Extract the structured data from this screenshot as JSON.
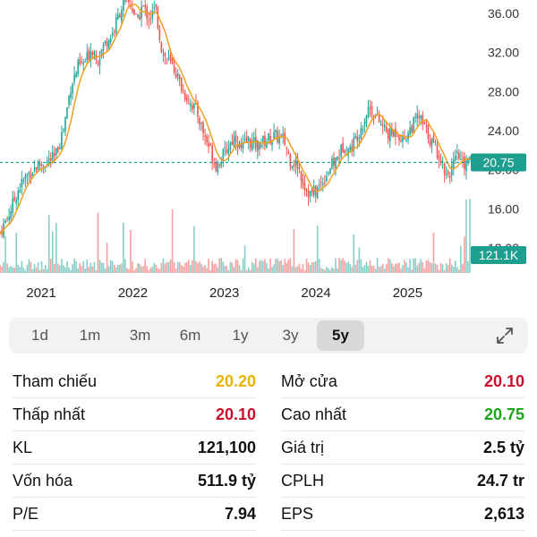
{
  "colors": {
    "up": "#26a69a",
    "down": "#ef5350",
    "ma": "#f0a020",
    "reference": "#e8b400",
    "red_value": "#c8102e",
    "green_value": "#1fa31f",
    "badge": "#1e9e8e"
  },
  "chart_data": {
    "type": "line",
    "price_ticks": [
      "36.00",
      "32.00",
      "28.00",
      "24.00",
      "20.00",
      "16.00",
      "12.00"
    ],
    "x_labels": [
      "2021",
      "2022",
      "2023",
      "2024",
      "2025"
    ],
    "ylim": [
      12,
      38
    ],
    "last_price": 20.75,
    "last_price_label": "20.75",
    "volume_label": "121.1K",
    "close_series": [
      {
        "t": 2020.55,
        "v": 13.6
      },
      {
        "t": 2020.65,
        "v": 15.5
      },
      {
        "t": 2020.75,
        "v": 18.0
      },
      {
        "t": 2020.85,
        "v": 19.5
      },
      {
        "t": 2020.95,
        "v": 20.4
      },
      {
        "t": 2021.05,
        "v": 20.8
      },
      {
        "t": 2021.15,
        "v": 21.2
      },
      {
        "t": 2021.25,
        "v": 24.5
      },
      {
        "t": 2021.32,
        "v": 28.5
      },
      {
        "t": 2021.4,
        "v": 30.5
      },
      {
        "t": 2021.48,
        "v": 31.0
      },
      {
        "t": 2021.55,
        "v": 32.5
      },
      {
        "t": 2021.62,
        "v": 31.5
      },
      {
        "t": 2021.7,
        "v": 33.0
      },
      {
        "t": 2021.78,
        "v": 34.0
      },
      {
        "t": 2021.85,
        "v": 36.0
      },
      {
        "t": 2021.92,
        "v": 37.5
      },
      {
        "t": 2022.0,
        "v": 36.5
      },
      {
        "t": 2022.05,
        "v": 35.0
      },
      {
        "t": 2022.1,
        "v": 36.8
      },
      {
        "t": 2022.18,
        "v": 35.5
      },
      {
        "t": 2022.25,
        "v": 36.5
      },
      {
        "t": 2022.32,
        "v": 32.0
      },
      {
        "t": 2022.4,
        "v": 31.0
      },
      {
        "t": 2022.47,
        "v": 30.0
      },
      {
        "t": 2022.55,
        "v": 28.0
      },
      {
        "t": 2022.62,
        "v": 27.0
      },
      {
        "t": 2022.7,
        "v": 26.0
      },
      {
        "t": 2022.78,
        "v": 23.5
      },
      {
        "t": 2022.85,
        "v": 22.0
      },
      {
        "t": 2022.9,
        "v": 20.5
      },
      {
        "t": 2022.96,
        "v": 21.0
      },
      {
        "t": 2023.05,
        "v": 22.5
      },
      {
        "t": 2023.12,
        "v": 23.5
      },
      {
        "t": 2023.18,
        "v": 22.0
      },
      {
        "t": 2023.25,
        "v": 23.0
      },
      {
        "t": 2023.35,
        "v": 22.5
      },
      {
        "t": 2023.45,
        "v": 23.0
      },
      {
        "t": 2023.55,
        "v": 23.5
      },
      {
        "t": 2023.65,
        "v": 23.0
      },
      {
        "t": 2023.72,
        "v": 21.0
      },
      {
        "t": 2023.8,
        "v": 20.5
      },
      {
        "t": 2023.87,
        "v": 18.5
      },
      {
        "t": 2023.93,
        "v": 17.5
      },
      {
        "t": 2024.0,
        "v": 17.8
      },
      {
        "t": 2024.08,
        "v": 19.0
      },
      {
        "t": 2024.15,
        "v": 20.2
      },
      {
        "t": 2024.22,
        "v": 21.0
      },
      {
        "t": 2024.3,
        "v": 22.5
      },
      {
        "t": 2024.37,
        "v": 22.0
      },
      {
        "t": 2024.45,
        "v": 23.5
      },
      {
        "t": 2024.52,
        "v": 25.0
      },
      {
        "t": 2024.58,
        "v": 26.5
      },
      {
        "t": 2024.65,
        "v": 25.5
      },
      {
        "t": 2024.72,
        "v": 24.5
      },
      {
        "t": 2024.8,
        "v": 23.5
      },
      {
        "t": 2024.88,
        "v": 24.0
      },
      {
        "t": 2024.95,
        "v": 23.0
      },
      {
        "t": 2025.05,
        "v": 24.5
      },
      {
        "t": 2025.12,
        "v": 25.5
      },
      {
        "t": 2025.2,
        "v": 24.0
      },
      {
        "t": 2025.28,
        "v": 22.5
      },
      {
        "t": 2025.35,
        "v": 21.5
      },
      {
        "t": 2025.42,
        "v": 19.5
      },
      {
        "t": 2025.48,
        "v": 20.0
      },
      {
        "t": 2025.55,
        "v": 21.5
      },
      {
        "t": 2025.6,
        "v": 20.5
      },
      {
        "t": 2025.66,
        "v": 20.75
      }
    ]
  },
  "ranges": [
    "1d",
    "1m",
    "3m",
    "6m",
    "1y",
    "3y",
    "5y"
  ],
  "active_range": "5y",
  "stats": {
    "reference": {
      "label": "Tham chiếu",
      "value": "20.20"
    },
    "open": {
      "label": "Mở cửa",
      "value": "20.10"
    },
    "low": {
      "label": "Thấp nhất",
      "value": "20.10"
    },
    "high": {
      "label": "Cao nhất",
      "value": "20.75"
    },
    "volume": {
      "label": "KL",
      "value": "121,100"
    },
    "value": {
      "label": "Giá trị",
      "value": "2.5 tỷ"
    },
    "market_cap": {
      "label": "Vốn hóa",
      "value": "511.9 tỷ"
    },
    "shares": {
      "label": "CPLH",
      "value": "24.7 tr"
    },
    "pe": {
      "label": "P/E",
      "value": "7.94"
    },
    "eps": {
      "label": "EPS",
      "value": "2,613"
    }
  }
}
